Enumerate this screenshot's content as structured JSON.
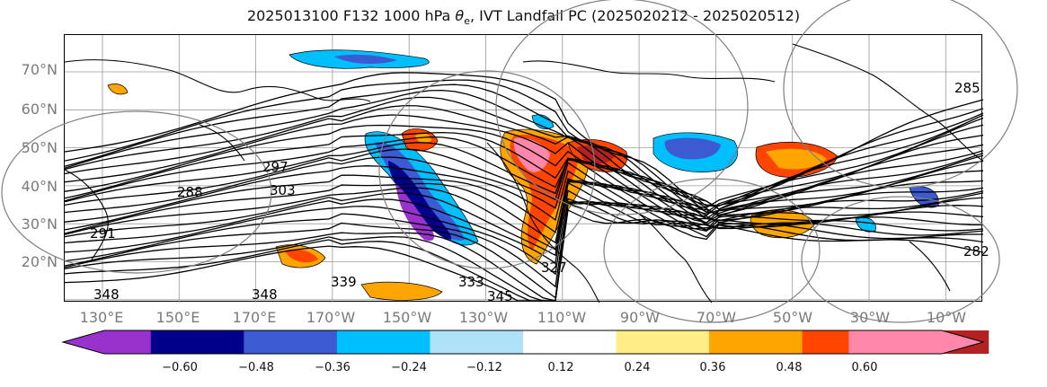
{
  "title_main": "2025013100 F132 1000 hPa ",
  "title_var": "θ",
  "title_sub": "e",
  "title_rest": ", IVT Landfall PC (2025020212 - 2025020512)",
  "lat_labels": [
    "70°N",
    "60°N",
    "50°N",
    "40°N",
    "30°N",
    "20°N"
  ],
  "lon_labels": [
    "130°E",
    "150°E",
    "170°E",
    "170°W",
    "150°W",
    "130°W",
    "110°W",
    "90°W",
    "70°W",
    "50°W",
    "30°W",
    "10°W"
  ],
  "contour_labels": [
    "291",
    "288",
    "297",
    "303",
    "348",
    "348",
    "339",
    "333",
    "345",
    "327",
    "285",
    "282"
  ],
  "colorbar": {
    "colors": [
      "#9932cc",
      "#00008b",
      "#3c5ad2",
      "#00bfff",
      "#aee2f8",
      "#ffffff",
      "#ffee88",
      "#ffa500",
      "#ff4500",
      "#b22222",
      "#ff88aa"
    ],
    "ticks": [
      "−0.60",
      "−0.48",
      "−0.36",
      "−0.24",
      "−0.12",
      "0.12",
      "0.24",
      "0.36",
      "0.48",
      "0.60"
    ]
  }
}
